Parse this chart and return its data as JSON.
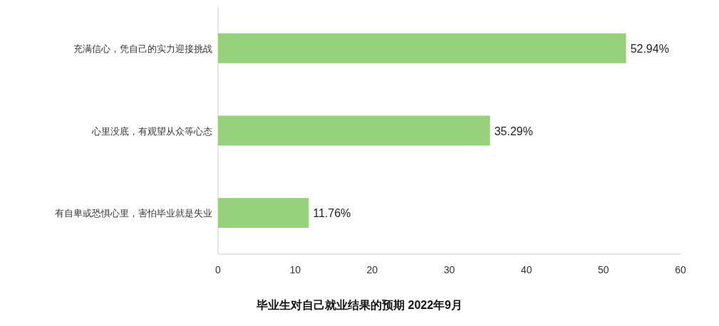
{
  "chart_data": {
    "type": "bar",
    "orientation": "horizontal",
    "title": "毕业生对自己就业结果的预期 2022年9月",
    "categories": [
      "充满信心，凭自己的实力迎接挑战",
      "心里没底，有观望从众等心态",
      "有自卑或恐惧心里，害怕毕业就是失业"
    ],
    "values": [
      52.94,
      35.29,
      11.76
    ],
    "value_labels": [
      "52.94%",
      "35.29%",
      "11.76%"
    ],
    "color": "#97d17b",
    "xlim": [
      0,
      60
    ],
    "xticks": [
      0,
      10,
      20,
      30,
      40,
      50,
      60
    ]
  }
}
